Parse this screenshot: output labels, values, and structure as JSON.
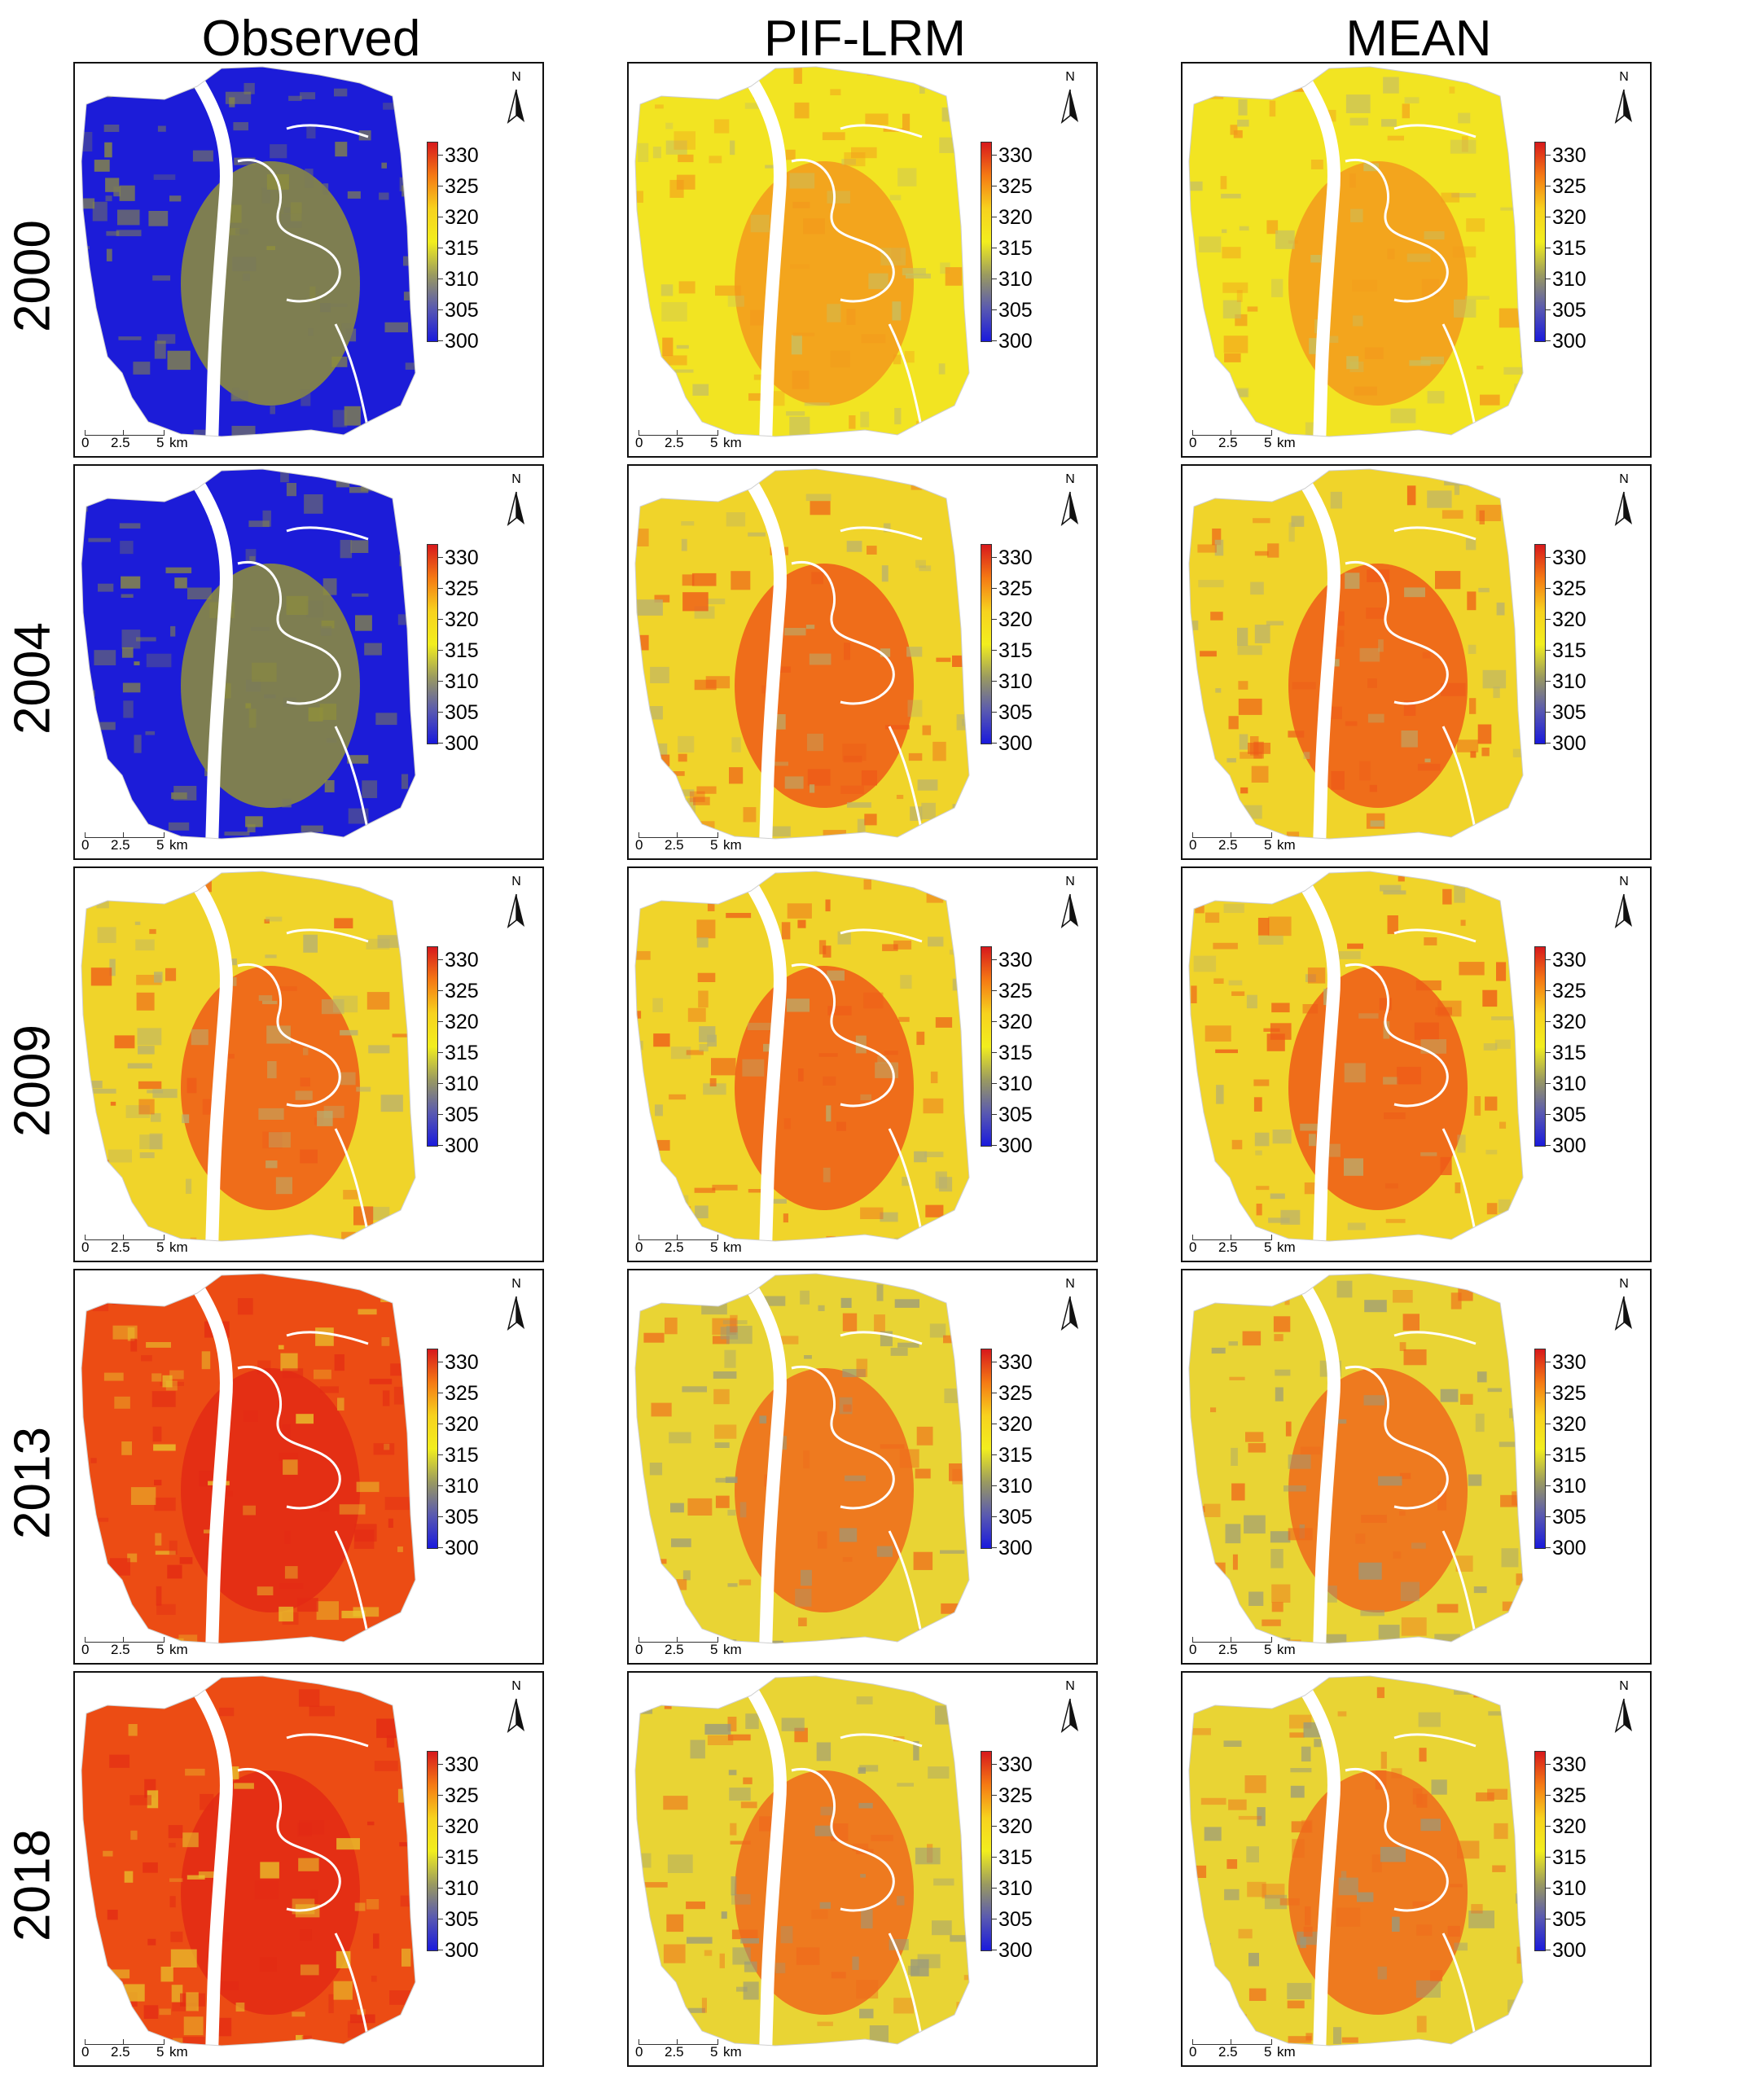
{
  "columns": [
    "Observed",
    "PIF-LRM",
    "MEAN"
  ],
  "rows": [
    "2000",
    "2004",
    "2009",
    "2013",
    "2018"
  ],
  "colorbar": {
    "ticks": [
      "330",
      "325",
      "320",
      "315",
      "310",
      "305",
      "300"
    ],
    "colors": [
      "#d7191c",
      "#f57a14",
      "#f7d21e",
      "#f2ee1e",
      "#9a9a60",
      "#5a5ab0",
      "#1a1adc"
    ]
  },
  "north_label": "N",
  "scale": {
    "labels": [
      "0",
      "2.5",
      "5",
      "km"
    ]
  },
  "palettes": {
    "blue": {
      "base": "#1c1cd8",
      "patch": "#7a7a5a",
      "core": "#8f8f3a"
    },
    "yellow": {
      "base": "#f2e422",
      "patch": "#c8c060",
      "core": "#f39a1c"
    },
    "mixed": {
      "base": "#f0d42a",
      "patch": "#b8b070",
      "core": "#ee5a18"
    },
    "red": {
      "base": "#ec4c14",
      "patch": "#e8c42c",
      "core": "#e32a14"
    },
    "cool": {
      "base": "#e9d434",
      "patch": "#9a9a7c",
      "core": "#ef6a1c"
    }
  },
  "panels": [
    [
      "blue",
      "yellow",
      "yellow"
    ],
    [
      "blue",
      "mixed",
      "mixed"
    ],
    [
      "mixed",
      "mixed",
      "mixed"
    ],
    [
      "red",
      "cool",
      "cool"
    ],
    [
      "red",
      "cool",
      "cool"
    ]
  ]
}
